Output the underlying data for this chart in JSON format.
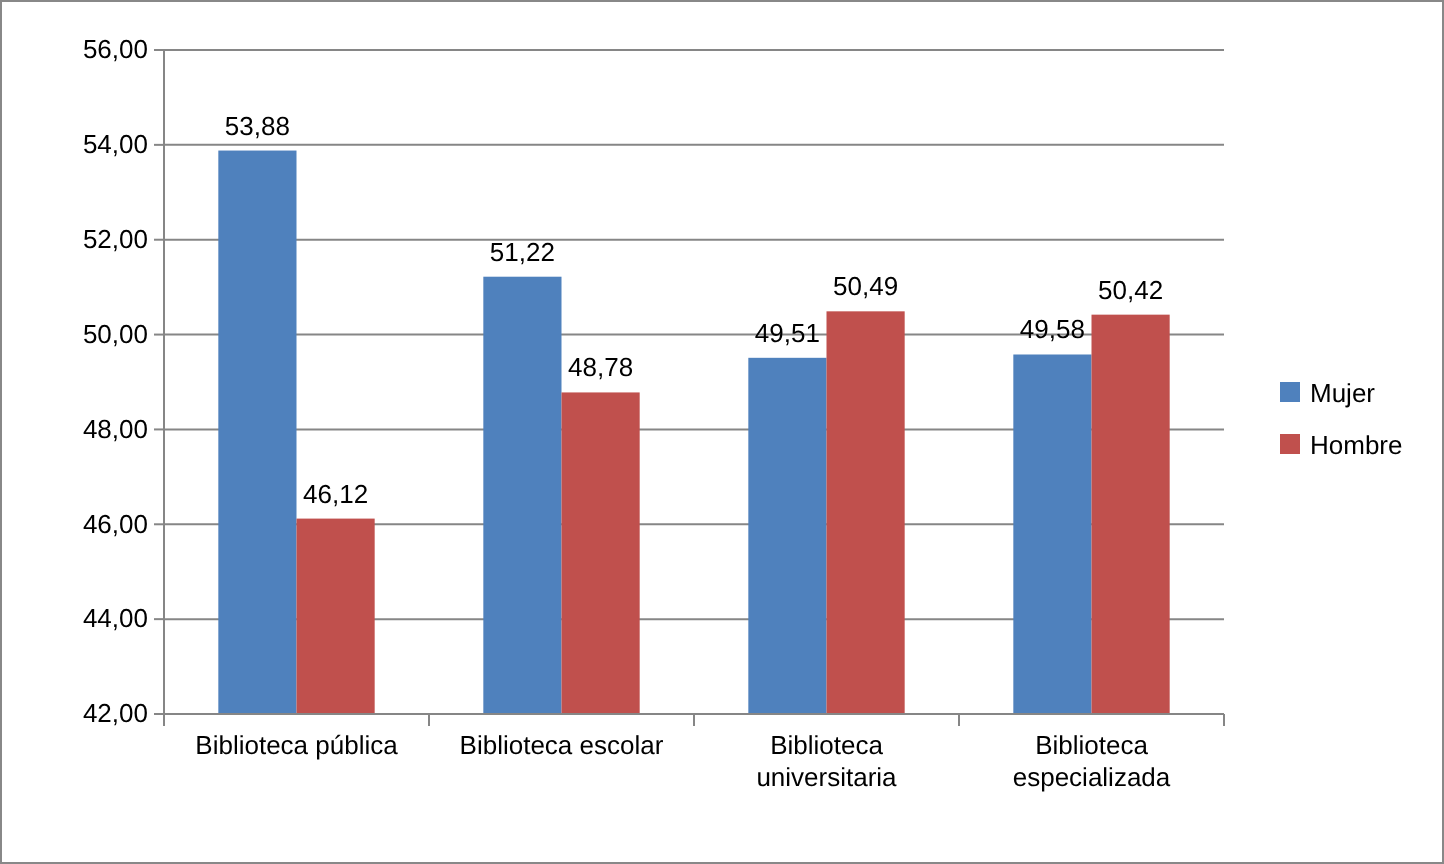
{
  "chart_data": {
    "type": "bar",
    "categories": [
      "Biblioteca pública",
      "Biblioteca escolar",
      "Biblioteca universitaria",
      "Biblioteca especializada"
    ],
    "series": [
      {
        "name": "Mujer",
        "color": "#4f81bd",
        "values": [
          53.88,
          51.22,
          49.51,
          49.58
        ],
        "value_labels": [
          "53,88",
          "51,22",
          "49,51",
          "49,58"
        ]
      },
      {
        "name": "Hombre",
        "color": "#c0504d",
        "values": [
          46.12,
          48.78,
          50.49,
          50.42
        ],
        "value_labels": [
          "46,12",
          "48,78",
          "50,49",
          "50,42"
        ]
      }
    ],
    "ylim": [
      42,
      56
    ],
    "yticks": [
      {
        "value": 42,
        "label": "42,00"
      },
      {
        "value": 44,
        "label": "44,00"
      },
      {
        "value": 46,
        "label": "46,00"
      },
      {
        "value": 48,
        "label": "48,00"
      },
      {
        "value": 50,
        "label": "50,00"
      },
      {
        "value": 52,
        "label": "52,00"
      },
      {
        "value": 54,
        "label": "54,00"
      },
      {
        "value": 56,
        "label": "56,00"
      }
    ],
    "grid": "y",
    "legend": "right"
  }
}
